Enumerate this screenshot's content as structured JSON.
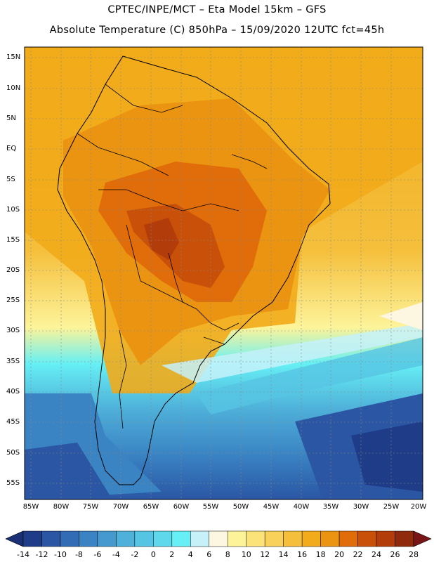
{
  "header": {
    "line1": "CPTEC/INPE/MCT –  Eta Model 15km – GFS",
    "line2": "Absolute Temperature (C) 850hPa – 15/09/2020 12UTC fct=45h"
  },
  "map": {
    "lat_labels": [
      "15N",
      "10N",
      "5N",
      "EQ",
      "5S",
      "10S",
      "15S",
      "20S",
      "25S",
      "30S",
      "35S",
      "40S",
      "45S",
      "50S",
      "55S"
    ],
    "lon_labels": [
      "85W",
      "80W",
      "75W",
      "70W",
      "65W",
      "60W",
      "55W",
      "50W",
      "45W",
      "40W",
      "35W",
      "30W",
      "25W",
      "20W"
    ]
  },
  "colorbar": {
    "labels": [
      "-14",
      "-12",
      "-10",
      "-8",
      "-6",
      "-4",
      "-2",
      "0",
      "2",
      "4",
      "6",
      "8",
      "10",
      "12",
      "14",
      "16",
      "18",
      "20",
      "22",
      "24",
      "26",
      "28"
    ],
    "colors": [
      "#1f3c88",
      "#2a56a3",
      "#326cb4",
      "#3a84c4",
      "#4699cf",
      "#4fb0d9",
      "#56c4e3",
      "#5fd8ec",
      "#66f0f5",
      "#c6f1f9",
      "#fdf7e1",
      "#fdf49a",
      "#fbe37a",
      "#f8d15a",
      "#f5bf3c",
      "#f2ab1a",
      "#eb9412",
      "#e06c0a",
      "#c95009",
      "#b23d0b",
      "#8f2a0c"
    ],
    "left_arrow_color": "#1b2f75",
    "right_arrow_color": "#7a1517"
  },
  "fields": {
    "warm_band": "#e57f10",
    "hot_core": "#c9590c",
    "cold_sea": "#2a5aa8",
    "land": "#000000"
  }
}
